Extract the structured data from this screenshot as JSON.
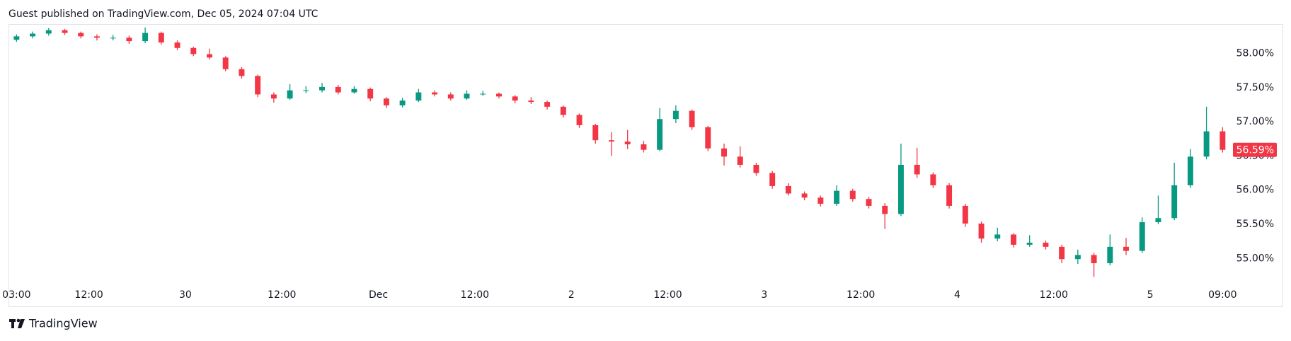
{
  "header": {
    "text": "Guest published on TradingView.com, Dec 05, 2024 07:04 UTC"
  },
  "footer": {
    "brand": "TradingView"
  },
  "chart_data": {
    "type": "candlestick",
    "up_color": "#089981",
    "down_color": "#f23645",
    "x": [
      3,
      5,
      7,
      9,
      11,
      13,
      15,
      17,
      19,
      21,
      23,
      25,
      27,
      29,
      31,
      33,
      35,
      37,
      39,
      41,
      43,
      45,
      47,
      49,
      51,
      53,
      55,
      57,
      59,
      61,
      63,
      65,
      67,
      69,
      71,
      73,
      75,
      77,
      79,
      81,
      83,
      85,
      87,
      89,
      91,
      93,
      95,
      97,
      99,
      101,
      103,
      105,
      107,
      109,
      111,
      113,
      115,
      117,
      119,
      121,
      123,
      125,
      127,
      129,
      131,
      133,
      135,
      137,
      139,
      141,
      143,
      145,
      147,
      149,
      151,
      153
    ],
    "open": [
      58.2,
      58.25,
      58.29,
      58.34,
      58.3,
      58.25,
      58.23,
      58.23,
      58.18,
      58.3,
      58.16,
      58.08,
      57.99,
      57.94,
      57.77,
      57.67,
      57.4,
      57.34,
      57.46,
      57.46,
      57.51,
      57.43,
      57.48,
      57.34,
      57.24,
      57.31,
      57.43,
      57.4,
      57.34,
      57.41,
      57.41,
      57.37,
      57.31,
      57.29,
      57.22,
      57.1,
      56.95,
      56.73,
      56.71,
      56.67,
      56.59,
      57.04,
      57.16,
      56.92,
      56.61,
      56.49,
      56.37,
      56.25,
      56.06,
      55.95,
      55.89,
      55.8,
      55.99,
      55.87,
      55.77,
      55.65,
      56.37,
      56.23,
      56.07,
      55.77,
      55.51,
      55.29,
      55.35,
      55.2,
      55.23,
      55.17,
      54.99,
      55.05,
      54.93,
      55.17,
      55.11,
      55.53,
      55.59,
      56.07,
      56.49,
      56.86
    ],
    "high": [
      58.28,
      58.32,
      58.37,
      58.36,
      58.32,
      58.28,
      58.27,
      58.26,
      58.38,
      58.32,
      58.19,
      58.1,
      58.07,
      57.96,
      57.8,
      57.69,
      57.43,
      57.55,
      57.52,
      57.57,
      57.54,
      57.52,
      57.5,
      57.36,
      57.35,
      57.48,
      57.46,
      57.43,
      57.46,
      57.45,
      57.43,
      57.39,
      57.36,
      57.31,
      57.24,
      57.12,
      56.97,
      56.85,
      56.88,
      56.72,
      57.2,
      57.24,
      57.18,
      56.94,
      56.68,
      56.64,
      56.4,
      56.28,
      56.1,
      55.98,
      55.92,
      56.07,
      56.02,
      55.9,
      55.81,
      56.68,
      56.62,
      56.26,
      56.1,
      55.8,
      55.54,
      55.45,
      55.37,
      55.34,
      55.26,
      55.2,
      55.13,
      55.08,
      55.35,
      55.3,
      55.6,
      55.92,
      56.4,
      56.6,
      57.22,
      56.92
    ],
    "low": [
      58.17,
      58.22,
      58.26,
      58.27,
      58.22,
      58.19,
      58.19,
      58.14,
      58.15,
      58.13,
      58.05,
      57.96,
      57.91,
      57.74,
      57.63,
      57.36,
      57.28,
      57.32,
      57.42,
      57.43,
      57.4,
      57.41,
      57.3,
      57.2,
      57.21,
      57.29,
      57.37,
      57.31,
      57.32,
      57.38,
      57.34,
      57.27,
      57.26,
      57.18,
      57.06,
      56.91,
      56.68,
      56.5,
      56.6,
      56.55,
      56.57,
      56.98,
      56.88,
      56.57,
      56.36,
      56.33,
      56.21,
      56.02,
      55.92,
      55.85,
      55.76,
      55.77,
      55.83,
      55.73,
      55.43,
      55.62,
      56.18,
      56.03,
      55.73,
      55.46,
      55.23,
      55.25,
      55.16,
      55.17,
      55.13,
      54.93,
      54.92,
      54.73,
      54.9,
      55.05,
      55.08,
      55.5,
      55.56,
      56.03,
      56.45,
      56.55
    ],
    "close": [
      58.25,
      58.29,
      58.34,
      58.3,
      58.25,
      58.23,
      58.23,
      58.18,
      58.3,
      58.16,
      58.08,
      57.99,
      57.94,
      57.77,
      57.67,
      57.4,
      57.34,
      57.46,
      57.46,
      57.51,
      57.43,
      57.48,
      57.34,
      57.24,
      57.31,
      57.43,
      57.4,
      57.34,
      57.41,
      57.41,
      57.37,
      57.31,
      57.29,
      57.22,
      57.1,
      56.95,
      56.73,
      56.71,
      56.67,
      56.59,
      57.04,
      57.16,
      56.92,
      56.61,
      56.49,
      56.37,
      56.25,
      56.06,
      55.95,
      55.89,
      55.8,
      55.99,
      55.87,
      55.77,
      55.65,
      56.37,
      56.23,
      56.07,
      55.77,
      55.51,
      55.29,
      55.35,
      55.2,
      55.23,
      55.17,
      54.99,
      55.05,
      54.93,
      55.17,
      55.11,
      55.53,
      55.59,
      56.07,
      56.49,
      56.86,
      56.59
    ],
    "xlim": [
      2,
      153.5
    ],
    "ylim": [
      54.63,
      58.43
    ],
    "xticks": [
      {
        "value": 3,
        "label": "03:00"
      },
      {
        "value": 12,
        "label": "12:00"
      },
      {
        "value": 24,
        "label": "30"
      },
      {
        "value": 36,
        "label": "12:00"
      },
      {
        "value": 48,
        "label": "Dec"
      },
      {
        "value": 60,
        "label": "12:00"
      },
      {
        "value": 72,
        "label": "2"
      },
      {
        "value": 84,
        "label": "12:00"
      },
      {
        "value": 96,
        "label": "3"
      },
      {
        "value": 108,
        "label": "12:00"
      },
      {
        "value": 120,
        "label": "4"
      },
      {
        "value": 132,
        "label": "12:00"
      },
      {
        "value": 144,
        "label": "5"
      },
      {
        "value": 153,
        "label": "09:00"
      }
    ],
    "yticks": [
      {
        "value": 55,
        "label": "55.00%"
      },
      {
        "value": 55.5,
        "label": "55.50%"
      },
      {
        "value": 56,
        "label": "56.00%"
      },
      {
        "value": 56.5,
        "label": "56.50%"
      },
      {
        "value": 57,
        "label": "57.00%"
      },
      {
        "value": 57.5,
        "label": "57.50%"
      },
      {
        "value": 58,
        "label": "58.00%"
      }
    ],
    "last_price": {
      "value": 56.59,
      "label": "56.59%"
    }
  }
}
